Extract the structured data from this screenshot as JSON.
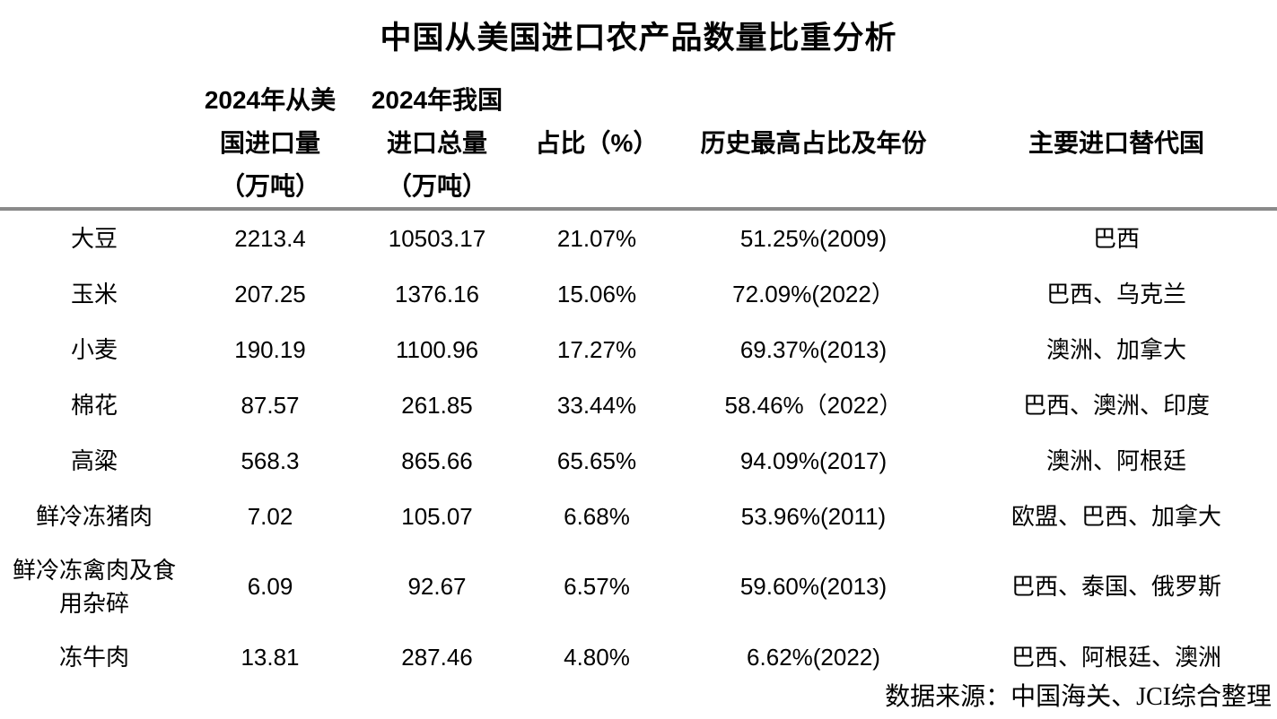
{
  "chart_data": {
    "type": "table",
    "title": "中国从美国进口农产品数量比重分析",
    "columns": [
      "",
      "2024年从美国进口量（万吨）",
      "2024年我国进口总量（万吨）",
      "占比（%）",
      "历史最高占比及年份",
      "主要进口替代国"
    ],
    "header_lines": {
      "us_import": [
        "2024年从美",
        "国进口量",
        "（万吨）"
      ],
      "total_import": [
        "2024年我国",
        "进口总量",
        "（万吨）"
      ],
      "share": "占比（%）",
      "historical_max": "历史最高占比及年份",
      "substitutes": "主要进口替代国"
    },
    "rows": [
      {
        "product": "大豆",
        "us_import": "2213.4",
        "total_import": "10503.17",
        "share": "21.07%",
        "historical_max": "51.25%(2009)",
        "substitutes": "巴西"
      },
      {
        "product": "玉米",
        "us_import": "207.25",
        "total_import": "1376.16",
        "share": "15.06%",
        "historical_max": "72.09%(2022）",
        "substitutes": "巴西、乌克兰"
      },
      {
        "product": "小麦",
        "us_import": "190.19",
        "total_import": "1100.96",
        "share": "17.27%",
        "historical_max": "69.37%(2013)",
        "substitutes": "澳洲、加拿大"
      },
      {
        "product": "棉花",
        "us_import": "87.57",
        "total_import": "261.85",
        "share": "33.44%",
        "historical_max": "58.46%（2022）",
        "substitutes": "巴西、澳洲、印度"
      },
      {
        "product": "高粱",
        "us_import": "568.3",
        "total_import": "865.66",
        "share": "65.65%",
        "historical_max": "94.09%(2017)",
        "substitutes": "澳洲、阿根廷"
      },
      {
        "product": "鲜冷冻猪肉",
        "us_import": "7.02",
        "total_import": "105.07",
        "share": "6.68%",
        "historical_max": "53.96%(2011)",
        "substitutes": "欧盟、巴西、加拿大"
      },
      {
        "product": "鲜冷冻禽肉及食用杂碎",
        "us_import": "6.09",
        "total_import": "92.67",
        "share": "6.57%",
        "historical_max": "59.60%(2013)",
        "substitutes": "巴西、泰国、俄罗斯"
      },
      {
        "product": "冻牛肉",
        "us_import": "13.81",
        "total_import": "287.46",
        "share": "4.80%",
        "historical_max": "6.62%(2022)",
        "substitutes": "巴西、阿根廷、澳洲"
      }
    ],
    "source": "数据来源：中国海关、JCI综合整理"
  },
  "colors": {
    "background": "#ffffff",
    "text": "#000000",
    "divider": "#8a8a8a"
  }
}
